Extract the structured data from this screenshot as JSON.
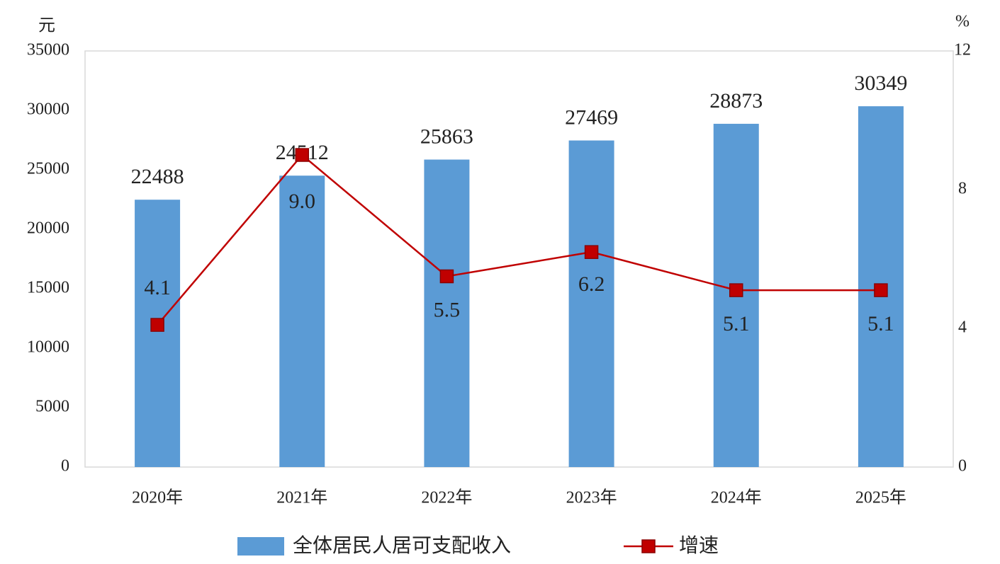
{
  "chart_data": {
    "type": "bar_line",
    "y_unit": "元",
    "y2_unit": "%",
    "categories": [
      "2020年",
      "2021年",
      "2022年",
      "2023年",
      "2024年",
      "2025年"
    ],
    "series": [
      {
        "name": "全体居民人居可支配收入",
        "type": "bar",
        "color": "#5b9bd5",
        "values": [
          22488,
          24512,
          25863,
          27469,
          28873,
          30349
        ]
      },
      {
        "name": "增速",
        "type": "line",
        "axis": "y2",
        "color": "#c00000",
        "values": [
          4.1,
          9.0,
          5.5,
          6.2,
          5.1,
          5.1
        ],
        "value_labels": [
          "4.1",
          "9.0",
          "5.5",
          "6.2",
          "5.1",
          "5.1"
        ]
      }
    ],
    "ylim": [
      0,
      35000
    ],
    "yticks": [
      0,
      5000,
      10000,
      15000,
      20000,
      25000,
      30000,
      35000
    ],
    "y2lim": [
      0,
      12
    ],
    "y2ticks": [
      0,
      4,
      8,
      12
    ],
    "grid": false
  }
}
